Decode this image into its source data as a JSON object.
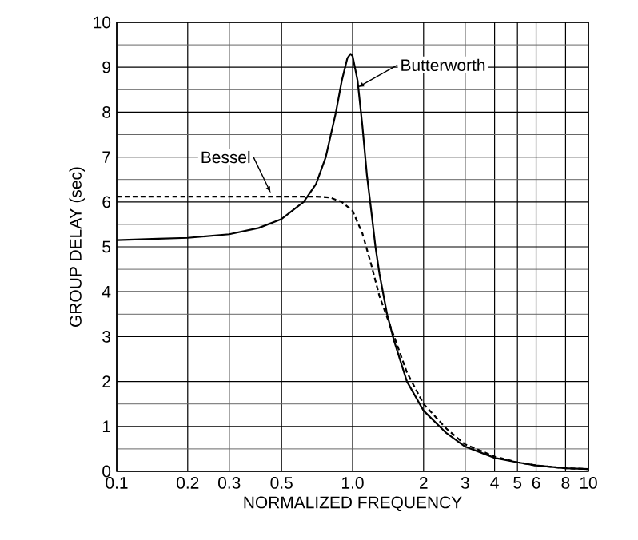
{
  "chart_data": {
    "type": "line",
    "xlabel": "NORMALIZED FREQUENCY",
    "ylabel": "GROUP DELAY (sec)",
    "log": "x",
    "grid": true,
    "legend": "top right",
    "marker": "none",
    "xlim": [
      0.1,
      10
    ],
    "ylim": [
      0,
      10
    ],
    "xticks": [
      0.1,
      0.2,
      0.3,
      0.5,
      {
        "value": 1,
        "label": "1.0"
      },
      2,
      3,
      4,
      5,
      6,
      8,
      10
    ],
    "yticks": [
      0,
      1,
      2,
      3,
      4,
      5,
      6,
      7,
      8,
      9,
      10
    ],
    "series": [
      {
        "name": "Butterworth",
        "color": "#000000",
        "line_style": "solid",
        "x": [
          0.1,
          0.15,
          0.2,
          0.3,
          0.4,
          0.5,
          0.62,
          0.7,
          0.77,
          0.85,
          0.9,
          0.95,
          0.98,
          1.0,
          1.05,
          1.1,
          1.15,
          1.2,
          1.25,
          1.3,
          1.4,
          1.5,
          1.7,
          2,
          2.5,
          3,
          4,
          5,
          6,
          8,
          10
        ],
        "values": [
          5.15,
          5.18,
          5.2,
          5.28,
          5.42,
          5.62,
          6.0,
          6.4,
          7.0,
          8.0,
          8.7,
          9.2,
          9.3,
          9.25,
          8.7,
          7.7,
          6.6,
          5.8,
          5.0,
          4.4,
          3.5,
          2.9,
          2.0,
          1.35,
          0.85,
          0.55,
          0.3,
          0.2,
          0.13,
          0.07,
          0.05
        ]
      },
      {
        "name": "Bessel",
        "color": "#000000",
        "line_style": "dashed",
        "x": [
          0.1,
          0.2,
          0.3,
          0.5,
          0.7,
          0.8,
          0.9,
          1.0,
          1.1,
          1.2,
          1.3,
          1.5,
          1.7,
          2,
          2.5,
          3,
          4,
          5,
          6,
          8,
          10
        ],
        "values": [
          6.12,
          6.12,
          6.12,
          6.12,
          6.12,
          6.1,
          6.0,
          5.8,
          5.3,
          4.6,
          3.9,
          3.0,
          2.2,
          1.5,
          0.95,
          0.6,
          0.33,
          0.2,
          0.13,
          0.07,
          0.05
        ]
      }
    ]
  }
}
